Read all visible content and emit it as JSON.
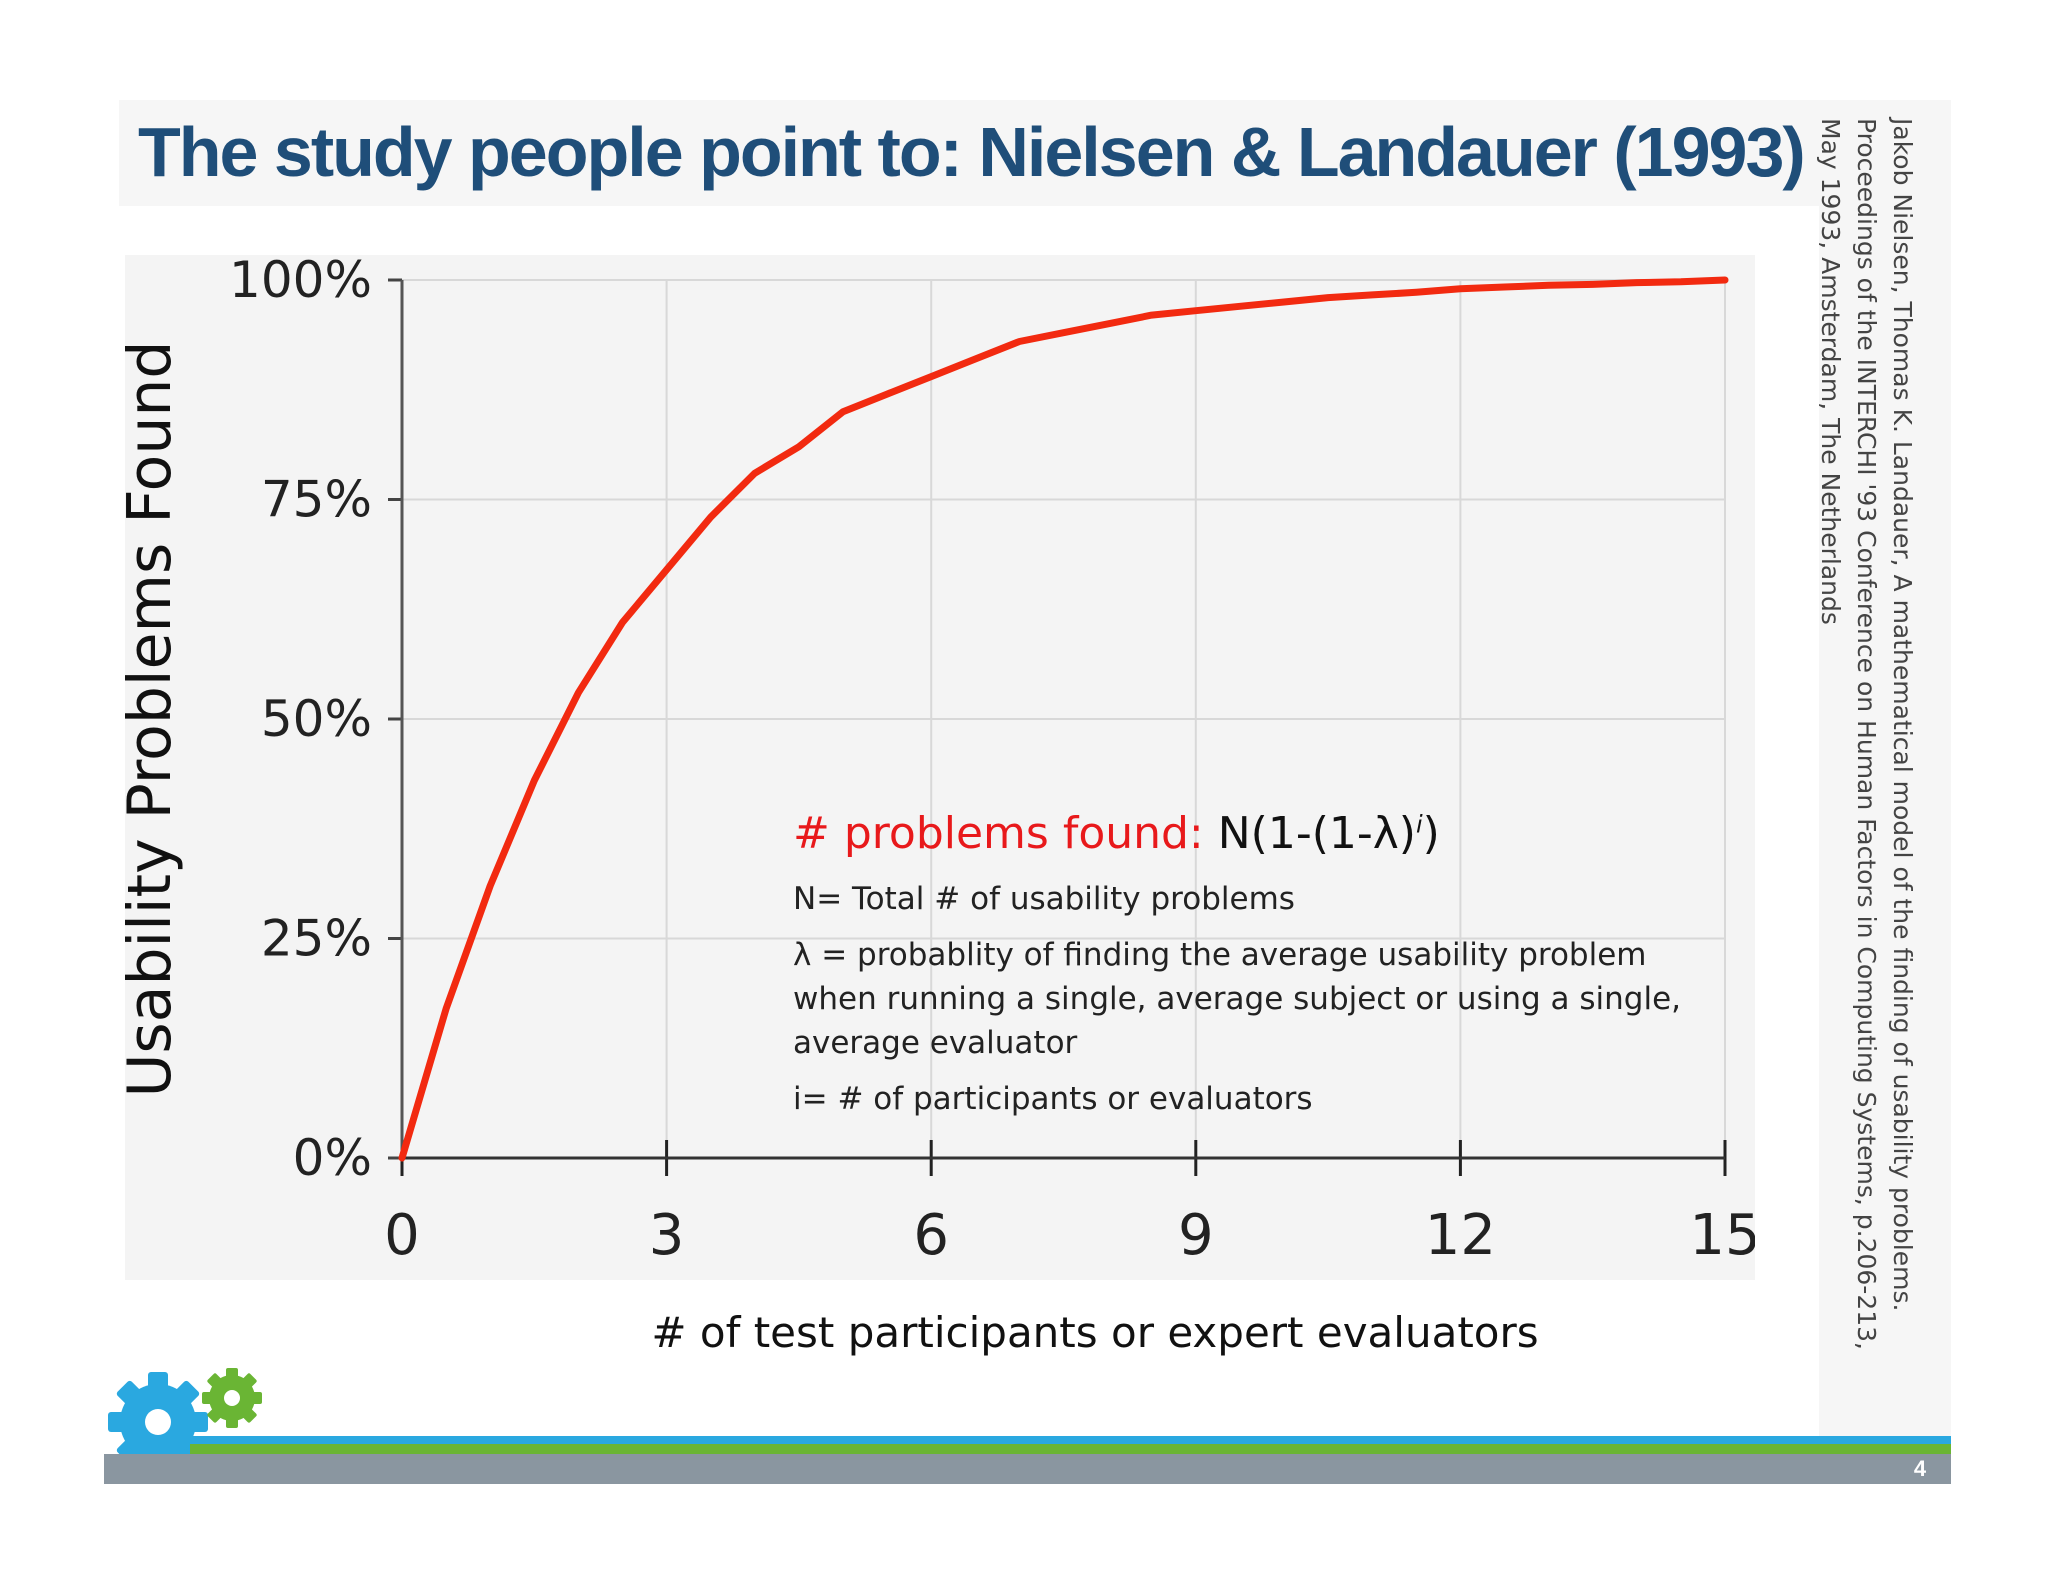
{
  "slide": {
    "title": "The study people point to: Nielsen & Landauer (1993)",
    "citation_lines": [
      "Jakob Nielsen, Thomas K. Landauer, A mathematical model of the finding of usability problems.",
      "Proceedings of the INTERCHI '93 Conference on Human Factors in Computing Systems, p.206-213,",
      "May 1993, Amsterdam, The Netherlands"
    ],
    "page_number": "4",
    "formula": {
      "label": "# problems found:",
      "expression": "N(1-(1-λ)",
      "exponent": "i",
      "closing": ")"
    },
    "definitions": [
      "N= Total # of usability problems",
      "λ = probablity of finding the average usability problem when running a single, average subject or using a single, average evaluator",
      "i= # of participants or evaluators"
    ],
    "colors": {
      "title": "#1f4e79",
      "curve": "#f22a10",
      "formula_label": "#e8191b",
      "bar_blue": "#2aa8e0",
      "bar_green": "#6ab534",
      "bar_gray": "#8a96a0",
      "gear_blue": "#2aa8e0",
      "gear_green": "#6ab534"
    },
    "icons": [
      "blue-gear-icon",
      "green-gear-icon"
    ]
  },
  "chart_data": {
    "type": "line",
    "title": "",
    "xlabel": "# of test participants or expert evaluators",
    "ylabel": "Usability Problems Found",
    "x_ticks": [
      0,
      3,
      6,
      9,
      12,
      15
    ],
    "y_ticks": [
      0,
      25,
      50,
      75,
      100
    ],
    "y_tick_labels": [
      "0%",
      "25%",
      "50%",
      "75%",
      "100%"
    ],
    "xlim": [
      0,
      15
    ],
    "ylim": [
      0,
      100
    ],
    "grid": true,
    "series": [
      {
        "color": "#f22a10",
        "x": [
          0,
          0.5,
          1,
          1.5,
          2,
          2.5,
          3,
          3.5,
          4,
          4.5,
          5,
          5.5,
          6,
          6.5,
          7,
          7.5,
          8,
          8.5,
          9,
          9.5,
          10,
          10.5,
          11,
          11.5,
          12,
          12.5,
          13,
          13.5,
          14,
          14.5,
          15
        ],
        "y": [
          0,
          17,
          31,
          43,
          53,
          61,
          67,
          73,
          78,
          81,
          85,
          87,
          89,
          91,
          93,
          94,
          95,
          96,
          96.5,
          97,
          97.5,
          98,
          98.3,
          98.6,
          99,
          99.2,
          99.4,
          99.5,
          99.7,
          99.8,
          100
        ]
      }
    ]
  }
}
